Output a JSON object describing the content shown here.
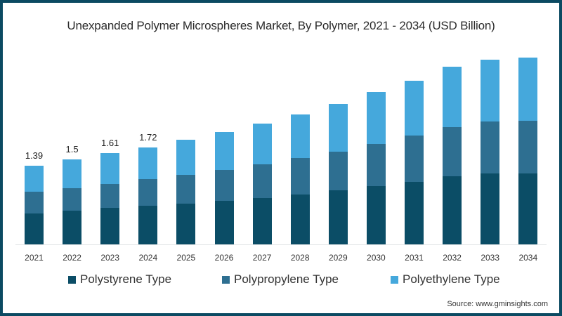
{
  "chart_data": {
    "type": "bar",
    "stacked": true,
    "title": "Unexpanded Polymer Microspheres Market, By Polymer, 2021 - 2034 (USD Billion)",
    "xlabel": "",
    "ylabel": "",
    "categories": [
      "2021",
      "2022",
      "2023",
      "2024",
      "2025",
      "2026",
      "2027",
      "2028",
      "2029",
      "2030",
      "2031",
      "2032",
      "2033",
      "2034"
    ],
    "series": [
      {
        "name": "Polystyrene Type",
        "color": "#0b4d66",
        "values": [
          0.55,
          0.6,
          0.64,
          0.68,
          0.72,
          0.77,
          0.82,
          0.88,
          0.96,
          1.03,
          1.11,
          1.2,
          1.25,
          1.26
        ]
      },
      {
        "name": "Polypropylene Type",
        "color": "#2e6f91",
        "values": [
          0.38,
          0.4,
          0.43,
          0.47,
          0.51,
          0.55,
          0.6,
          0.65,
          0.68,
          0.75,
          0.81,
          0.88,
          0.92,
          0.93
        ]
      },
      {
        "name": "Polyethylene Type",
        "color": "#45a8dc",
        "values": [
          0.46,
          0.5,
          0.54,
          0.57,
          0.62,
          0.67,
          0.72,
          0.77,
          0.85,
          0.91,
          0.97,
          1.06,
          1.1,
          1.11
        ]
      }
    ],
    "data_labels": [
      {
        "category": "2021",
        "label": "1.39"
      },
      {
        "category": "2022",
        "label": "1.5"
      },
      {
        "category": "2023",
        "label": "1.61"
      },
      {
        "category": "2024",
        "label": "1.72"
      }
    ],
    "ylim": [
      0,
      3.5
    ],
    "grid": false,
    "legend_position": "bottom"
  },
  "title": "Unexpanded Polymer Microspheres Market, By Polymer, 2021 - 2034 (USD Billion)",
  "legend": [
    {
      "label": "Polystyrene Type",
      "color": "#0b4d66"
    },
    {
      "label": "Polypropylene Type",
      "color": "#2e6f91"
    },
    {
      "label": "Polyethylene Type",
      "color": "#45a8dc"
    }
  ],
  "source": "Source: www.gminsights.com",
  "colors": {
    "frame": "#0b4a62",
    "axis": "#e3e6e8"
  }
}
